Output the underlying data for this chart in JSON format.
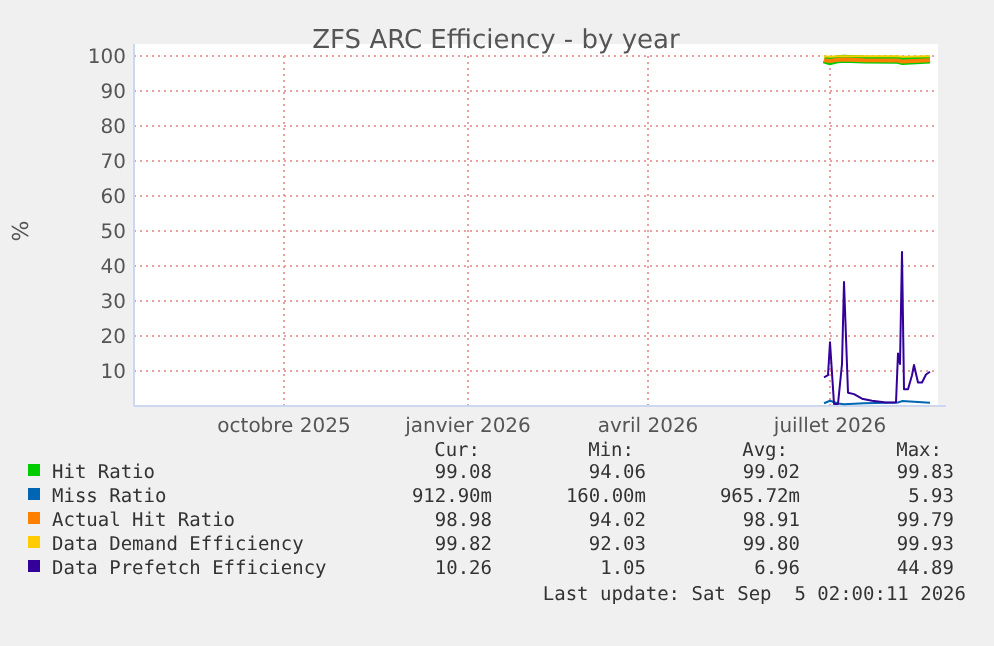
{
  "chart_data": {
    "type": "line",
    "title": "ZFS ARC Efficiency - by year",
    "ylabel": "%",
    "xlim": [
      "2025-08-01",
      "2026-09-05"
    ],
    "xticks": [
      {
        "value": "2025-10-15",
        "label": "octobre 2025"
      },
      {
        "value": "2026-01-15",
        "label": "janvier 2026"
      },
      {
        "value": "2026-04-15",
        "label": "avril 2026"
      },
      {
        "value": "2026-07-15",
        "label": "juillet 2026"
      }
    ],
    "ylim": [
      0,
      100
    ],
    "yticks": [
      10,
      20,
      30,
      40,
      50,
      60,
      70,
      80,
      90,
      100
    ],
    "grid": true,
    "legend": "bottom",
    "line_style": "solid",
    "marker": "none",
    "series": [
      {
        "name": "Hit Ratio",
        "color": "#00cc00",
        "x": [
          "2026-07-12",
          "2026-07-15",
          "2026-07-19",
          "2026-07-22",
          "2026-08-01",
          "2026-08-18",
          "2026-08-20",
          "2026-09-03"
        ],
        "values": [
          99.0,
          98.5,
          99.1,
          99.2,
          99.0,
          98.9,
          98.6,
          99.0
        ]
      },
      {
        "name": "Miss Ratio",
        "color": "#0066b3",
        "x": [
          "2026-07-12",
          "2026-07-15",
          "2026-07-19",
          "2026-07-22",
          "2026-08-01",
          "2026-08-18",
          "2026-08-20",
          "2026-09-03"
        ],
        "values": [
          0.8,
          1.5,
          0.7,
          0.5,
          0.8,
          1.0,
          1.4,
          0.9
        ]
      },
      {
        "name": "Actual Hit Ratio",
        "color": "#ff8000",
        "x": [
          "2026-07-12",
          "2026-07-15",
          "2026-07-19",
          "2026-07-22",
          "2026-08-01",
          "2026-08-18",
          "2026-08-20",
          "2026-09-03"
        ],
        "values": [
          98.8,
          98.6,
          98.9,
          99.0,
          98.8,
          98.7,
          98.4,
          98.8
        ]
      },
      {
        "name": "Data Demand Efficiency",
        "color": "#ffcc00",
        "x": [
          "2026-07-12",
          "2026-07-15",
          "2026-07-19",
          "2026-07-22",
          "2026-08-01",
          "2026-08-18",
          "2026-08-20",
          "2026-09-03"
        ],
        "values": [
          99.9,
          99.8,
          99.9,
          99.9,
          99.9,
          99.9,
          99.8,
          99.9
        ]
      },
      {
        "name": "Data Prefetch Efficiency",
        "color": "#330099",
        "x": [
          "2026-07-12",
          "2026-07-14",
          "2026-07-15",
          "2026-07-17",
          "2026-07-19",
          "2026-07-21",
          "2026-07-22",
          "2026-07-24",
          "2026-07-27",
          "2026-07-31",
          "2026-08-05",
          "2026-08-12",
          "2026-08-17",
          "2026-08-18",
          "2026-08-19",
          "2026-08-20",
          "2026-08-21",
          "2026-08-23",
          "2026-08-25",
          "2026-08-26",
          "2026-08-28",
          "2026-08-30",
          "2026-09-01",
          "2026-09-03"
        ],
        "values": [
          8.2,
          8.8,
          18.2,
          0.6,
          0.6,
          12,
          35.4,
          3.8,
          3.4,
          2.1,
          1.5,
          1,
          1,
          15,
          12,
          44,
          4.8,
          4.8,
          8.8,
          11.7,
          6.7,
          6.7,
          9,
          9.8
        ]
      }
    ],
    "annotations": [
      "Cur:",
      "Min:",
      "Avg:",
      "Max:",
      "99.08",
      "94.06",
      "99.02",
      "99.83",
      "912.90m",
      "160.00m",
      "965.72m",
      "5.93",
      "98.98",
      "94.02",
      "98.91",
      "99.79",
      "99.82",
      "92.03",
      "99.80",
      "99.93",
      "10.26",
      "1.05",
      "6.96",
      "44.89",
      "Last update: Sat Sep  5 02:00:11 2026"
    ]
  }
}
